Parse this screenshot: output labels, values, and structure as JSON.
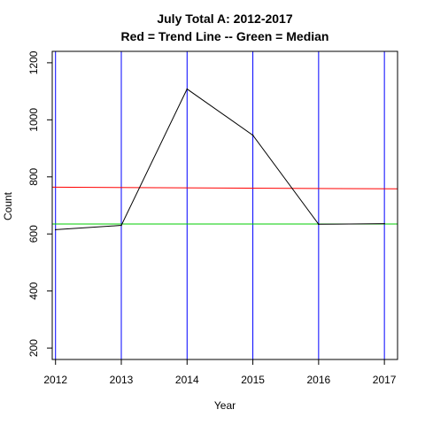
{
  "chart_data": {
    "type": "line",
    "title": "July Total A: 2012-2017",
    "subtitle": "Red = Trend Line -- Green = Median",
    "xlabel": "Year",
    "ylabel": "Count",
    "x": [
      2012,
      2013,
      2014,
      2015,
      2016,
      2017
    ],
    "xlim": [
      2011.95,
      2017.2
    ],
    "ylim": [
      160,
      1240
    ],
    "xticks": [
      "2012",
      "2013",
      "2014",
      "2015",
      "2016",
      "2017"
    ],
    "yticks": [
      "200",
      "400",
      "600",
      "800",
      "1000",
      "1200"
    ],
    "series": [
      {
        "values": [
          615,
          630,
          1108,
          946,
          634,
          636
        ],
        "color": "#000000"
      }
    ],
    "trend_line": {
      "start": 764,
      "end": 758,
      "color": "#ff0000"
    },
    "median_line": {
      "value": 635,
      "color": "#00cd00"
    },
    "vertical_lines": {
      "at": [
        2012,
        2013,
        2014,
        2015,
        2016,
        2017
      ],
      "color": "#0000ff"
    },
    "grid": false
  }
}
